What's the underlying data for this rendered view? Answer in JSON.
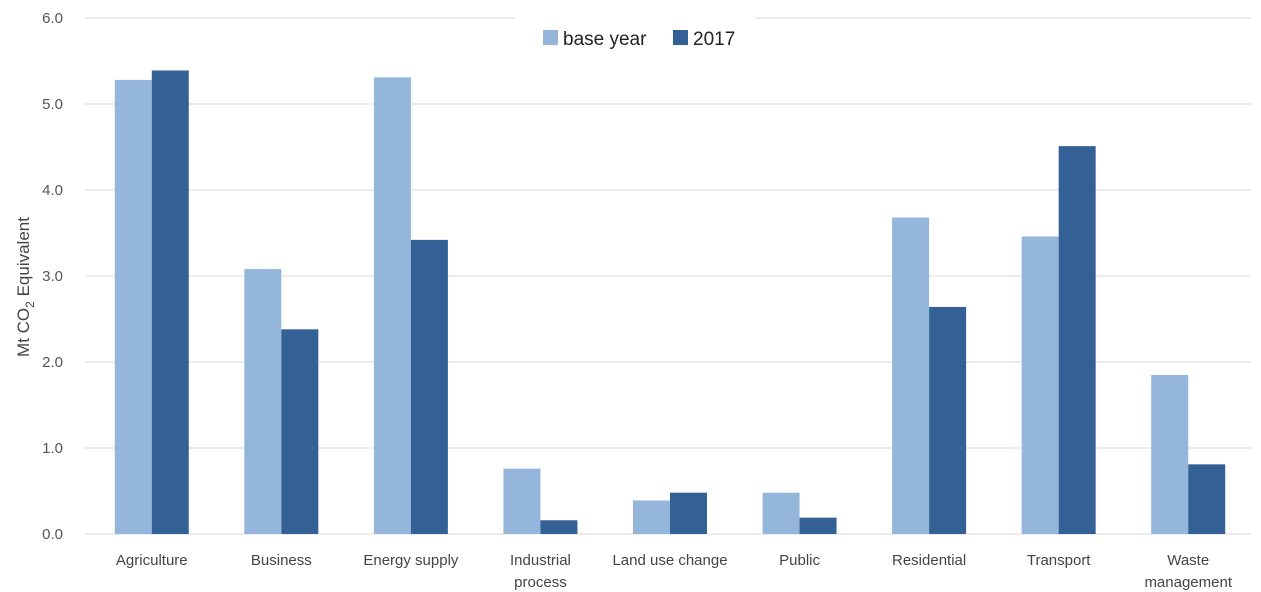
{
  "chart_data": {
    "type": "bar",
    "categories": [
      [
        "Agriculture"
      ],
      [
        "Business"
      ],
      [
        "Energy supply"
      ],
      [
        "Industrial",
        "process"
      ],
      [
        "Land use change"
      ],
      [
        "Public"
      ],
      [
        "Residential"
      ],
      [
        "Transport"
      ],
      [
        "Waste",
        "management"
      ]
    ],
    "series": [
      {
        "name": "base year",
        "color": "#94b6da",
        "values": [
          5.28,
          3.08,
          5.31,
          0.76,
          0.39,
          0.48,
          3.68,
          3.46,
          1.85
        ]
      },
      {
        "name": "2017",
        "color": "#336196",
        "values": [
          5.39,
          2.38,
          3.42,
          0.16,
          0.48,
          0.19,
          2.64,
          4.51,
          0.81
        ]
      }
    ],
    "ylabel": {
      "main": "Mt CO",
      "sub": "2",
      "rest": " Equivalent"
    },
    "ylim": [
      0,
      6
    ],
    "yticks": [
      "0.0",
      "1.0",
      "2.0",
      "3.0",
      "4.0",
      "5.0",
      "6.0"
    ],
    "grid": true,
    "legend_position": "top-center"
  }
}
